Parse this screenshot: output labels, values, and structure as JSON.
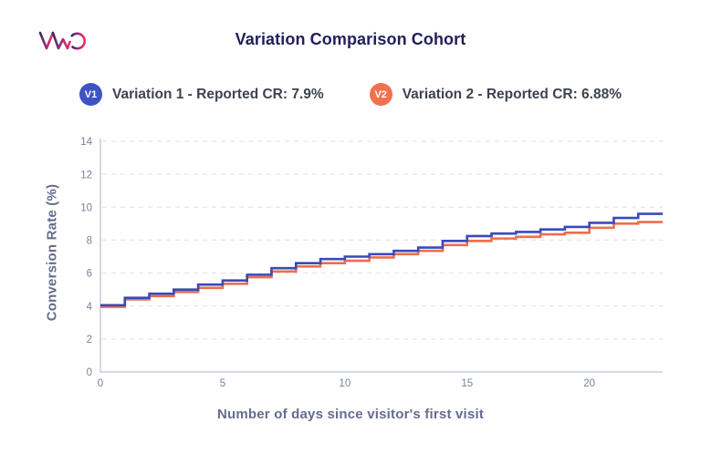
{
  "header": {
    "title": "Variation Comparison Cohort",
    "logo": "VWO"
  },
  "legend": [
    {
      "badge": "V1",
      "label": "Variation 1 - Reported CR: 7.9%",
      "color": "#3d53c5"
    },
    {
      "badge": "V2",
      "label": "Variation 2 - Reported CR: 6.88%",
      "color": "#f0714b"
    }
  ],
  "chart_data": {
    "type": "line",
    "subtype": "step-after",
    "title": "Variation Comparison Cohort",
    "xlabel": "Number of days since visitor's first visit",
    "ylabel": "Conversion Rate (%)",
    "x": [
      0,
      1,
      2,
      3,
      4,
      5,
      6,
      7,
      8,
      9,
      10,
      11,
      12,
      13,
      14,
      15,
      16,
      17,
      18,
      19,
      20,
      21,
      22
    ],
    "x_end": 23,
    "series": [
      {
        "name": "Variation 1",
        "reported_cr": "7.9%",
        "color": "#3a49bb",
        "values": [
          4.05,
          4.5,
          4.75,
          5.0,
          5.3,
          5.55,
          5.9,
          6.3,
          6.6,
          6.85,
          7.0,
          7.15,
          7.35,
          7.55,
          7.95,
          8.25,
          8.4,
          8.5,
          8.65,
          8.8,
          9.05,
          9.35,
          9.6
        ]
      },
      {
        "name": "Variation 2",
        "reported_cr": "6.88%",
        "color": "#ed6e4c",
        "values": [
          3.95,
          4.4,
          4.6,
          4.85,
          5.1,
          5.35,
          5.75,
          6.1,
          6.4,
          6.6,
          6.75,
          6.95,
          7.15,
          7.35,
          7.7,
          7.95,
          8.1,
          8.2,
          8.35,
          8.45,
          8.75,
          9.0,
          9.1
        ]
      }
    ],
    "xlim": [
      0,
      23
    ],
    "ylim": [
      0,
      14
    ],
    "xticks": [
      0,
      5,
      10,
      15,
      20
    ],
    "yticks": [
      0,
      2,
      4,
      6,
      8,
      10,
      12,
      14
    ],
    "grid": "horizontal-dashed",
    "legend_position": "top"
  },
  "colors": {
    "axis": "#c7cde4",
    "gridline": "#e4e4ed",
    "tick_label": "#7b809b",
    "title": "#221d5c",
    "axis_title": "#666c8e"
  }
}
